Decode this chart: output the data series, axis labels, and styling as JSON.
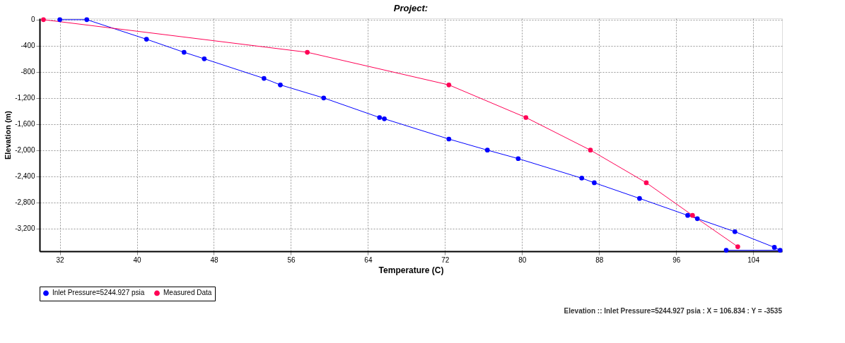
{
  "chart_data": {
    "type": "line",
    "title": "Project:",
    "xlabel": "Temperature (C)",
    "ylabel": "Elevation (m)",
    "xlim": [
      29.9,
      107
    ],
    "ylim": [
      -3550,
      20
    ],
    "xticks": [
      32,
      40,
      48,
      56,
      64,
      72,
      80,
      88,
      96,
      104
    ],
    "yticks": [
      0,
      -400,
      -800,
      {
        "value": -1200,
        "label": "-1,200"
      },
      {
        "value": -1600,
        "label": "-1,600"
      },
      {
        "value": -2000,
        "label": "-2,000"
      },
      {
        "value": -2400,
        "label": "-2,400"
      },
      {
        "value": -2800,
        "label": "-2,800"
      },
      {
        "value": -3200,
        "label": "-3,200"
      }
    ],
    "grid": true,
    "legend": "bottom",
    "marker": "circle",
    "line_style": "solid",
    "series": [
      {
        "name": "Inlet Pressure=5244.927 psia",
        "color": "#0000ff",
        "x": [
          32,
          34.8,
          41.0,
          44.9,
          47.0,
          53.2,
          54.9,
          59.4,
          65.2,
          65.7,
          72.4,
          76.4,
          79.6,
          86.2,
          87.5,
          92.2,
          97.2,
          98.2,
          102.1,
          106.2,
          106.8,
          101.2
        ],
        "values": [
          0,
          0,
          -300,
          -500,
          -600,
          -900,
          -1000,
          -1200,
          -1500,
          -1520,
          -1830,
          -2000,
          -2130,
          -2430,
          -2500,
          -2740,
          -3000,
          -3050,
          -3250,
          -3490,
          -3535,
          -3535
        ]
      },
      {
        "name": "Measured Data",
        "color": "#ff0055",
        "x": [
          30.3,
          57.7,
          72.4,
          80.4,
          87.1,
          92.9,
          97.7,
          102.4
        ],
        "values": [
          0,
          -500,
          -1000,
          -1500,
          -2000,
          -2500,
          -3000,
          -3480
        ]
      }
    ],
    "annotations": [
      "Elevation :: Inlet Pressure=5244.927 psia : X = 106.834 : Y = -3535"
    ]
  }
}
